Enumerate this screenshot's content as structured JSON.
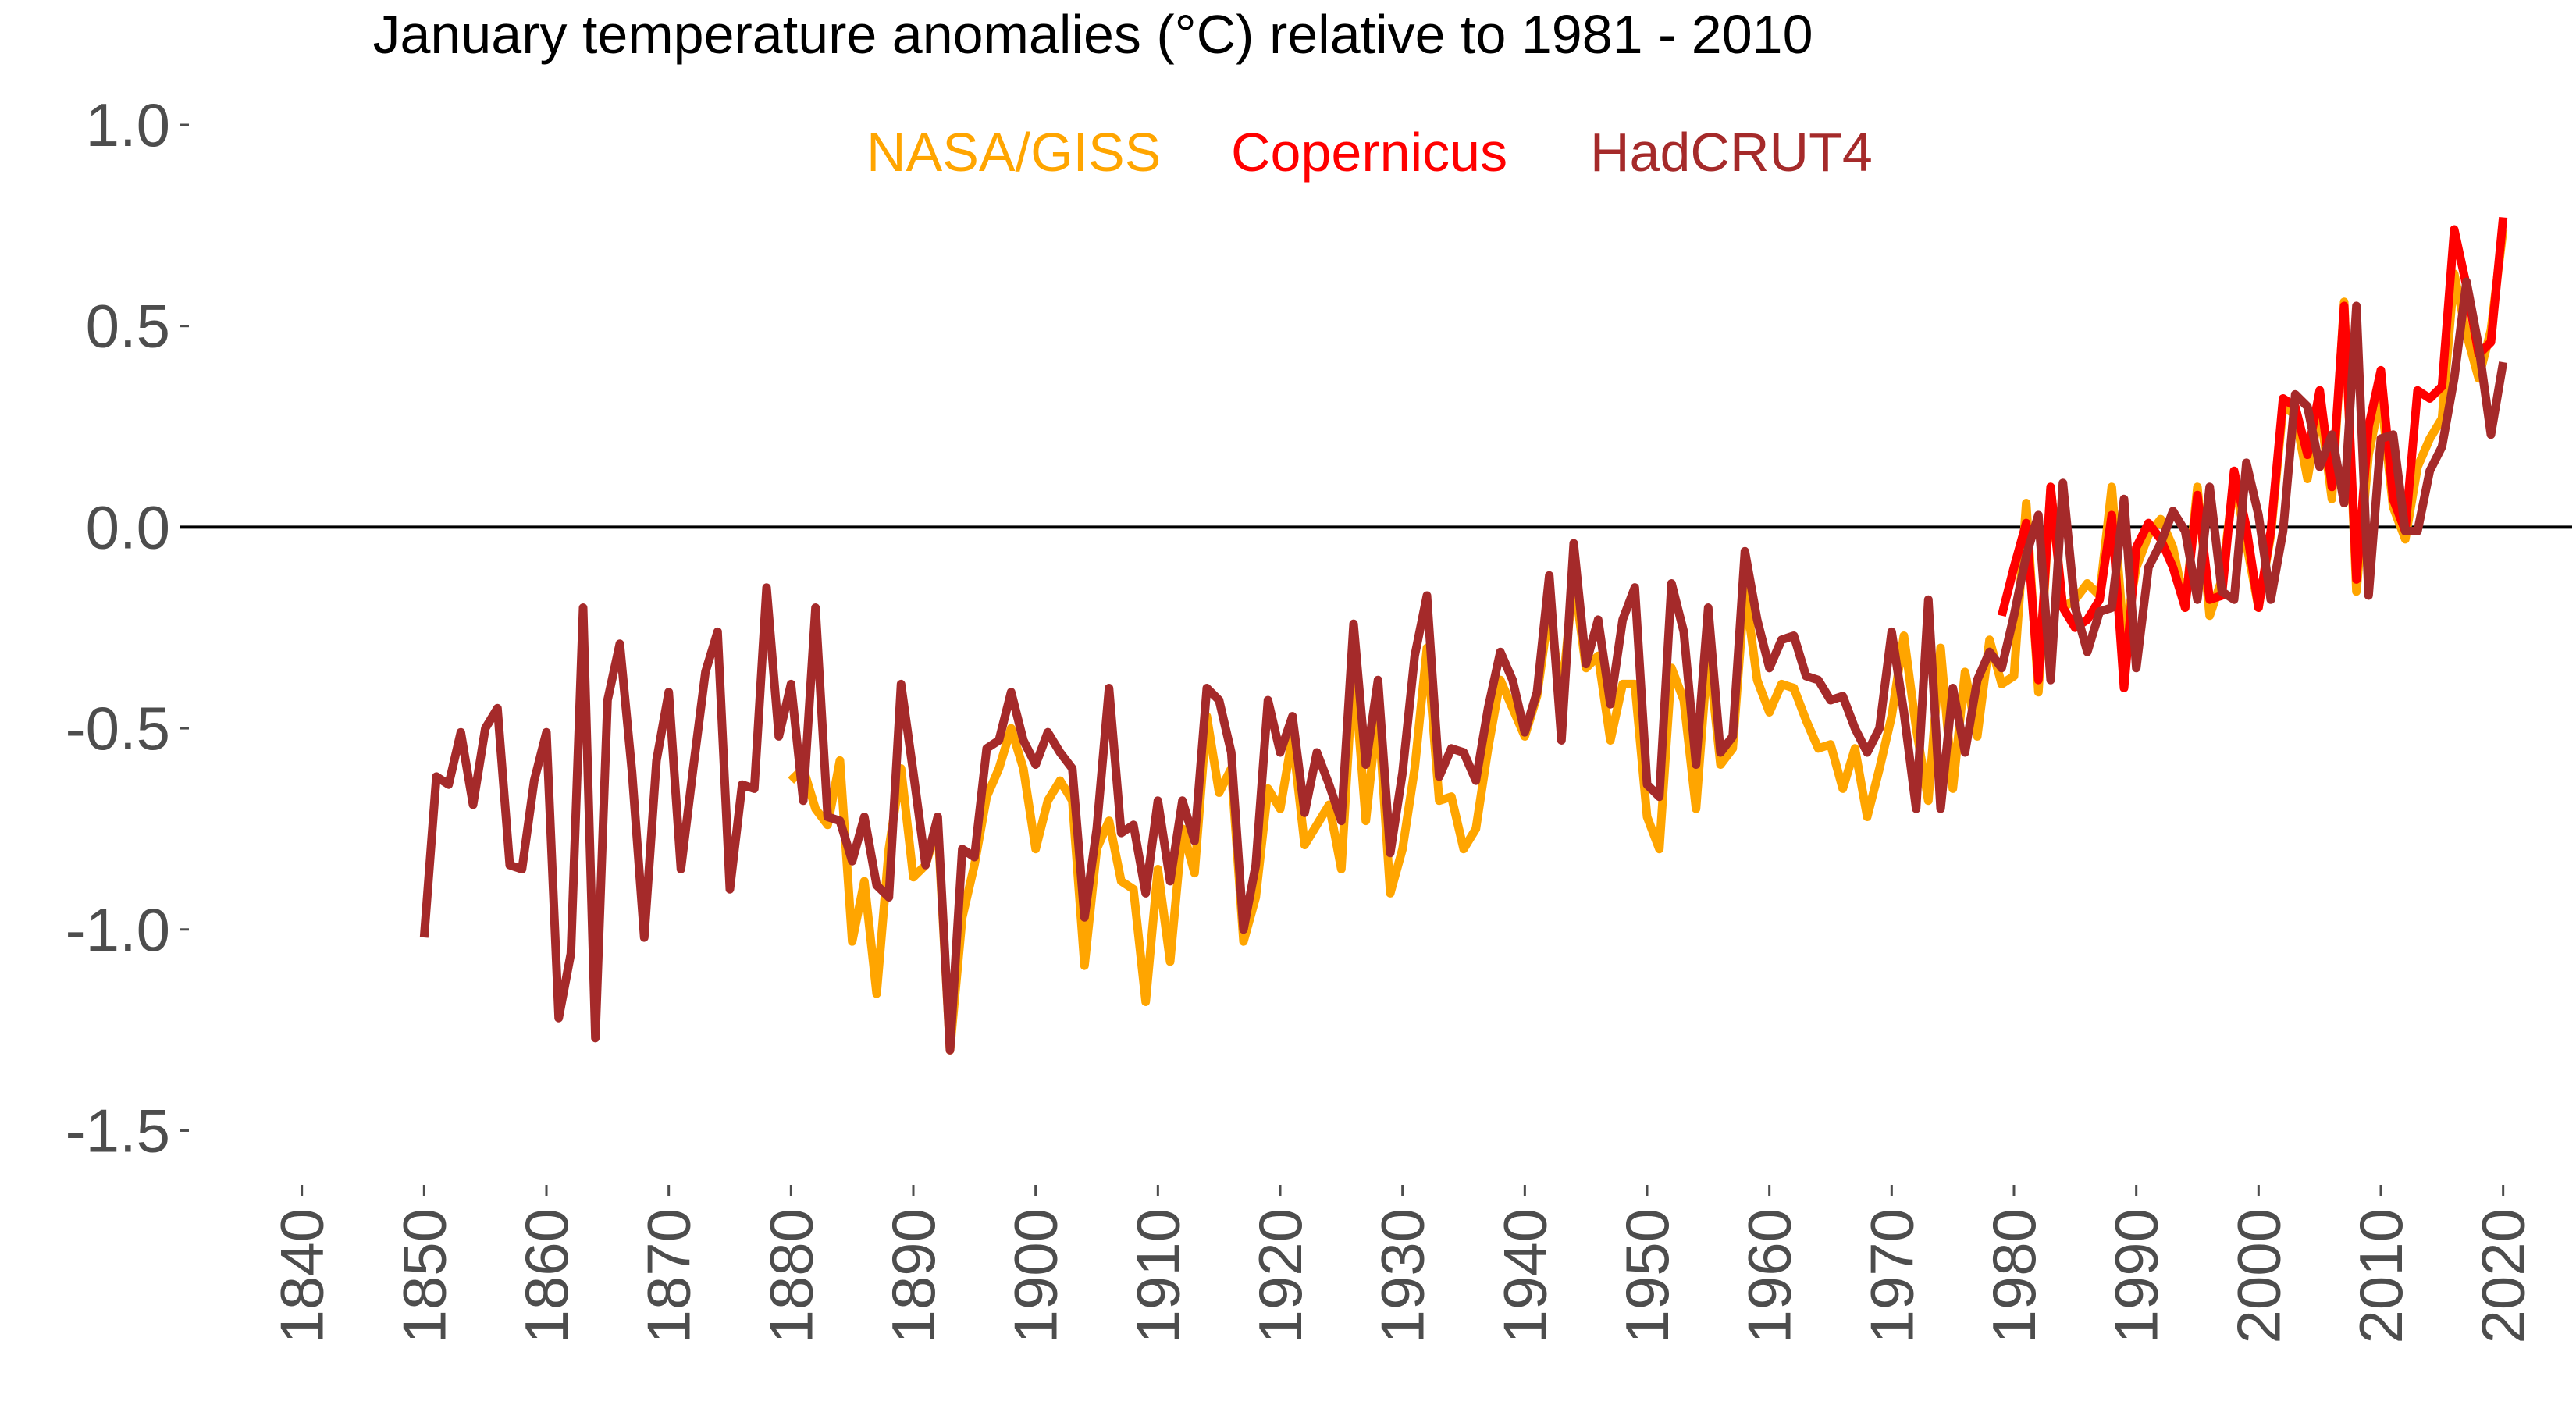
{
  "chart_data": {
    "type": "line",
    "title": "January temperature anomalies (°C)  relative to 1981 - 2010",
    "xlabel": "",
    "ylabel": "",
    "xlim": [
      1830,
      2025
    ],
    "ylim": [
      -1.6,
      1.0
    ],
    "x_ticks": [
      "1840",
      "1850",
      "1860",
      "1870",
      "1880",
      "1890",
      "1900",
      "1910",
      "1920",
      "1930",
      "1940",
      "1950",
      "1960",
      "1970",
      "1980",
      "1990",
      "2000",
      "2010",
      "2020"
    ],
    "y_ticks": [
      "1.0",
      "0.5",
      "0.0",
      "-0.5",
      "-1.0",
      "-1.5"
    ],
    "reference_line": 0.0,
    "grid": false,
    "legend_position": "top-center",
    "series": [
      {
        "name": "NASA/GISS",
        "color": "#FFA500",
        "start_year": 1880,
        "values": [
          -0.63,
          -0.6,
          -0.7,
          -0.74,
          -0.58,
          -1.03,
          -0.88,
          -1.16,
          -0.8,
          -0.6,
          -0.87,
          -0.84,
          -0.74,
          -1.3,
          -0.97,
          -0.84,
          -0.67,
          -0.6,
          -0.5,
          -0.6,
          -0.8,
          -0.68,
          -0.63,
          -0.68,
          -1.09,
          -0.8,
          -0.73,
          -0.88,
          -0.9,
          -1.18,
          -0.85,
          -1.08,
          -0.75,
          -0.86,
          -0.47,
          -0.66,
          -0.6,
          -1.03,
          -0.92,
          -0.65,
          -0.7,
          -0.52,
          -0.79,
          -0.74,
          -0.69,
          -0.85,
          -0.34,
          -0.73,
          -0.45,
          -0.91,
          -0.8,
          -0.6,
          -0.3,
          -0.68,
          -0.67,
          -0.8,
          -0.75,
          -0.55,
          -0.38,
          -0.45,
          -0.52,
          -0.42,
          -0.2,
          -0.43,
          -0.12,
          -0.35,
          -0.32,
          -0.53,
          -0.39,
          -0.39,
          -0.72,
          -0.8,
          -0.35,
          -0.43,
          -0.7,
          -0.3,
          -0.59,
          -0.55,
          -0.15,
          -0.38,
          -0.46,
          -0.39,
          -0.4,
          -0.48,
          -0.55,
          -0.54,
          -0.65,
          -0.55,
          -0.72,
          -0.6,
          -0.47,
          -0.27,
          -0.5,
          -0.68,
          -0.3,
          -0.65,
          -0.36,
          -0.52,
          -0.28,
          -0.39,
          -0.37,
          0.06,
          -0.41,
          0.1,
          -0.2,
          -0.18,
          -0.14,
          -0.17,
          0.1,
          -0.28,
          -0.1,
          -0.02,
          0.02,
          -0.05,
          -0.2,
          0.1,
          -0.22,
          -0.13,
          0.12,
          -0.04,
          -0.2,
          -0.02,
          0.3,
          0.28,
          0.12,
          0.3,
          0.07,
          0.56,
          -0.16,
          0.18,
          0.33,
          0.05,
          -0.03,
          0.15,
          0.22,
          0.27,
          0.63,
          0.48,
          0.37,
          0.49,
          0.74
        ]
      },
      {
        "name": "Copernicus",
        "color": "#FF0000",
        "start_year": 1979,
        "values": [
          -0.22,
          -0.1,
          0.01,
          -0.38,
          0.1,
          -0.2,
          -0.25,
          -0.23,
          -0.18,
          0.03,
          -0.4,
          -0.05,
          0.01,
          -0.03,
          -0.1,
          -0.2,
          0.08,
          -0.18,
          -0.17,
          0.14,
          0.0,
          -0.2,
          -0.01,
          0.32,
          0.3,
          0.18,
          0.34,
          0.1,
          0.55,
          -0.13,
          0.25,
          0.39,
          0.07,
          -0.01,
          0.34,
          0.32,
          0.35,
          0.74,
          0.6,
          0.43,
          0.46,
          0.77
        ]
      },
      {
        "name": "HadCRUT4",
        "color": "#A52A2A",
        "start_year": 1850,
        "values": [
          -1.02,
          -0.62,
          -0.64,
          -0.51,
          -0.69,
          -0.5,
          -0.45,
          -0.84,
          -0.85,
          -0.63,
          -0.51,
          -1.22,
          -1.06,
          -0.2,
          -1.27,
          -0.43,
          -0.29,
          -0.61,
          -1.02,
          -0.58,
          -0.41,
          -0.85,
          -0.6,
          -0.36,
          -0.26,
          -0.9,
          -0.64,
          -0.65,
          -0.15,
          -0.52,
          -0.39,
          -0.68,
          -0.2,
          -0.72,
          -0.73,
          -0.83,
          -0.72,
          -0.89,
          -0.92,
          -0.39,
          -0.61,
          -0.84,
          -0.72,
          -1.3,
          -0.8,
          -0.82,
          -0.55,
          -0.53,
          -0.41,
          -0.53,
          -0.59,
          -0.51,
          -0.56,
          -0.6,
          -0.97,
          -0.75,
          -0.4,
          -0.76,
          -0.74,
          -0.91,
          -0.68,
          -0.88,
          -0.68,
          -0.78,
          -0.4,
          -0.43,
          -0.56,
          -1.0,
          -0.84,
          -0.43,
          -0.56,
          -0.47,
          -0.71,
          -0.56,
          -0.64,
          -0.73,
          -0.24,
          -0.59,
          -0.38,
          -0.81,
          -0.61,
          -0.32,
          -0.17,
          -0.62,
          -0.55,
          -0.56,
          -0.63,
          -0.45,
          -0.31,
          -0.38,
          -0.51,
          -0.41,
          -0.12,
          -0.53,
          -0.04,
          -0.34,
          -0.23,
          -0.44,
          -0.23,
          -0.15,
          -0.64,
          -0.67,
          -0.14,
          -0.26,
          -0.59,
          -0.2,
          -0.56,
          -0.52,
          -0.06,
          -0.23,
          -0.35,
          -0.28,
          -0.27,
          -0.37,
          -0.38,
          -0.43,
          -0.42,
          -0.5,
          -0.56,
          -0.5,
          -0.26,
          -0.46,
          -0.7,
          -0.18,
          -0.7,
          -0.4,
          -0.56,
          -0.38,
          -0.31,
          -0.35,
          -0.22,
          -0.07,
          0.03,
          -0.38,
          0.11,
          -0.2,
          -0.31,
          -0.21,
          -0.2,
          0.07,
          -0.35,
          -0.1,
          -0.04,
          0.04,
          -0.01,
          -0.18,
          0.1,
          -0.16,
          -0.18,
          0.16,
          0.03,
          -0.18,
          -0.01,
          0.33,
          0.3,
          0.15,
          0.23,
          0.06,
          0.55,
          -0.17,
          0.22,
          0.23,
          -0.01,
          -0.01,
          0.14,
          0.2,
          0.37,
          0.61,
          0.45,
          0.23,
          0.41
        ]
      }
    ]
  }
}
